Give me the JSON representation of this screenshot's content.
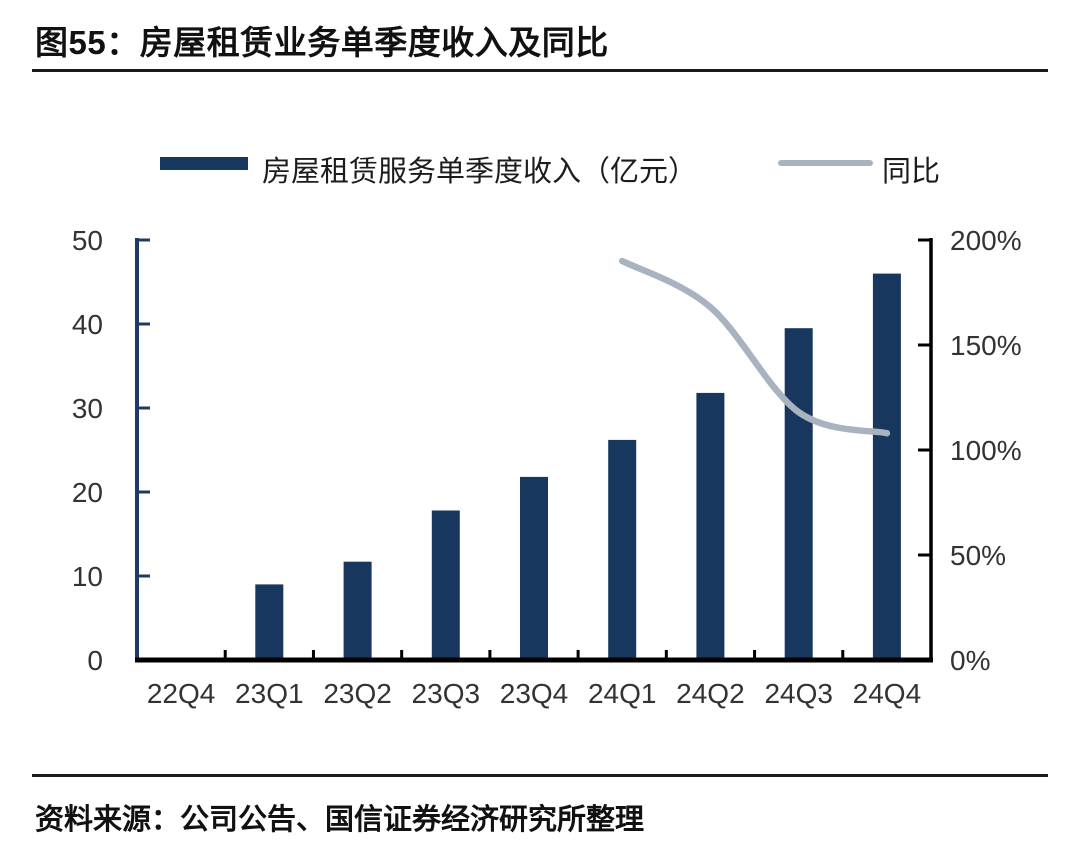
{
  "header": {
    "title": "图55：房屋租赁业务单季度收入及同比"
  },
  "legend": {
    "bar_label": "房屋租赁服务单季度收入（亿元）",
    "line_label": "同比"
  },
  "footer": {
    "source": "资料来源：公司公告、国信证券经济研究所整理"
  },
  "colors": {
    "bar": "#17375E",
    "line": "#A9B3BF",
    "left_axis": "#203864",
    "black_axis": "#000000",
    "tick_label": "#333333"
  },
  "chart_data": {
    "type": "bar",
    "title": "房屋租赁业务单季度收入及同比",
    "categories": [
      "22Q4",
      "23Q1",
      "23Q2",
      "23Q3",
      "23Q4",
      "24Q1",
      "24Q2",
      "24Q3",
      "24Q4"
    ],
    "series": [
      {
        "name": "房屋租赁服务单季度收入（亿元）",
        "type": "bar",
        "axis": "left",
        "values": [
          null,
          9.0,
          11.7,
          17.8,
          21.8,
          26.2,
          31.8,
          39.5,
          46.0
        ]
      },
      {
        "name": "同比",
        "type": "line",
        "axis": "right",
        "unit": "%",
        "values": [
          null,
          null,
          null,
          null,
          null,
          190,
          168,
          118,
          108
        ]
      }
    ],
    "left_axis": {
      "ticks": [
        "0",
        "10",
        "20",
        "30",
        "40",
        "50"
      ],
      "range": [
        0,
        50
      ]
    },
    "right_axis": {
      "ticks": [
        "0%",
        "50%",
        "100%",
        "150%",
        "200%"
      ],
      "range": [
        0,
        200
      ]
    },
    "grid": false,
    "legend_position": "top"
  }
}
